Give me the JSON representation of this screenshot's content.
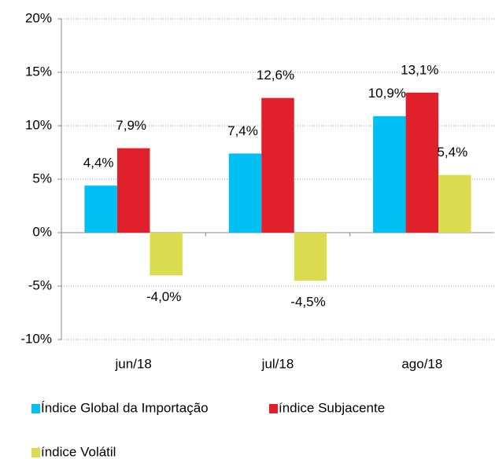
{
  "chart_data": {
    "type": "bar",
    "categories": [
      "jun/18",
      "jul/18",
      "ago/18"
    ],
    "series": [
      {
        "name": "Índice Global da Importação",
        "color": "#00bff3",
        "values": [
          4.4,
          7.4,
          10.9
        ],
        "value_labels": [
          "4,4%",
          "7,4%",
          "10,9%"
        ]
      },
      {
        "name": "índice Subjacente",
        "color": "#e0202b",
        "values": [
          7.9,
          12.6,
          13.1
        ],
        "value_labels": [
          "7,9%",
          "12,6%",
          "13,1%"
        ]
      },
      {
        "name": "índice Volátil",
        "color": "#dcdc50",
        "values": [
          -4.0,
          -4.5,
          5.4
        ],
        "value_labels": [
          "-4,0%",
          "-4,5%",
          "5,4%"
        ]
      }
    ],
    "ylim": [
      -10,
      20
    ],
    "yticks": [
      {
        "value": -10,
        "label": "-10%"
      },
      {
        "value": -5,
        "label": "-5%"
      },
      {
        "value": 0,
        "label": "0%"
      },
      {
        "value": 5,
        "label": "5%"
      },
      {
        "value": 10,
        "label": "10%"
      },
      {
        "value": 15,
        "label": "15%"
      },
      {
        "value": 20,
        "label": "20%"
      }
    ],
    "grid": true
  }
}
